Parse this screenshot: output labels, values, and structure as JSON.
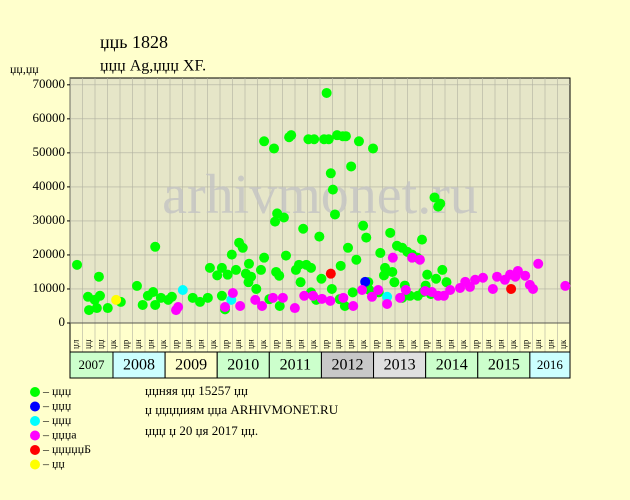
{
  "chart_data": {
    "type": "scatter",
    "title": "џџь 1828",
    "subtitle": "џџџ Ag,џџџ XF.",
    "y_label": "џџ,џџ",
    "watermark": "arhivmonet.ru",
    "xlim": [
      2007.175,
      2016.77
    ],
    "ylim": [
      0,
      72000
    ],
    "yticks": [
      0,
      10000,
      20000,
      30000,
      40000,
      50000,
      60000,
      70000
    ],
    "grid": true,
    "plot_color": "#e6e6c8",
    "column_labels": [
      "џл",
      "џџ",
      "џџ",
      "џк",
      "џр",
      "џн",
      "џн",
      "џк",
      "џр",
      "џн",
      "џн",
      "џк",
      "џр",
      "џн",
      "џн",
      "џк",
      "џр",
      "џн",
      "џн",
      "џк",
      "џр",
      "џн",
      "џн",
      "џк",
      "џр",
      "џн",
      "џн",
      "џк",
      "џр",
      "џн",
      "џн",
      "џк",
      "џр",
      "џн",
      "џн",
      "џк",
      "џр",
      "џн",
      "џн",
      "џк"
    ],
    "years": [
      2007,
      2008,
      2009,
      2010,
      2011,
      2012,
      2013,
      2014,
      2015,
      2016
    ],
    "year_colors": [
      "#ccffcc",
      "#ccffff",
      "#ffffcc",
      "#ccffcc",
      "#ccffcc",
      "#c8c8c8",
      "#e0e0e0",
      "#ccffcc",
      "#ccffcc",
      "#ccffff"
    ],
    "series": [
      {
        "name": "– џџџ",
        "color": "#00ff00",
        "x": [
          2007.31,
          2007.52,
          2007.54,
          2007.65,
          2007.73,
          2007.75,
          2007.69,
          2007.9,
          2008.15,
          2008.46,
          2008.57,
          2008.67,
          2008.77,
          2008.81,
          2008.81,
          2008.92,
          2009.06,
          2009.13,
          2009.53,
          2009.67,
          2009.86,
          2009.82,
          2010.09,
          2010.09,
          2010.2,
          2010.28,
          2010.36,
          2010.42,
          2010.49,
          2010.55,
          2010.61,
          2010.65,
          2010.9,
          2010.84,
          2010.9,
          2011.09,
          2011.15,
          2011.19,
          2011.11,
          2011.28,
          2011.13,
          2011.32,
          2011.38,
          2011.42,
          2011.51,
          2011.57,
          2011.65,
          2011.71,
          2011.75,
          2011.8,
          2011.86,
          2011.9,
          2011.96,
          2012.05,
          2012.1,
          2012.14,
          2012.18,
          2012.22,
          2012.26,
          2012.3,
          2012.37,
          2012.41,
          2012.47,
          2012.51,
          2012.57,
          2012.67,
          2012.72,
          2012.8,
          2012.86,
          2012.92,
          2012.99,
          2013.13,
          2013.22,
          2013.32,
          2013.36,
          2013.45,
          2013.55,
          2013.65,
          2013.74,
          2013.84,
          2013.93,
          2014.03,
          2014.17,
          2014.24,
          2014.28,
          2014.32,
          2013.95,
          2013.55,
          2010.0,
          2010.15,
          2010.6,
          2010.75,
          2011.0,
          2011.2,
          2011.6,
          2011.8,
          2012.0,
          2012.2,
          2012.35,
          2012.45,
          2012.6,
          2012.9,
          2013.1,
          2013.2,
          2013.4,
          2013.6,
          2013.7,
          2013.85,
          2014.0,
          2014.1,
          2014.2,
          2014.4
        ],
        "values": [
          17100,
          7700,
          3800,
          6800,
          13600,
          8000,
          4400,
          4400,
          6200,
          10900,
          5300,
          8000,
          9100,
          22400,
          5300,
          7400,
          6800,
          7700,
          7400,
          6200,
          16200,
          7400,
          16200,
          8000,
          14200,
          20100,
          15600,
          23600,
          22100,
          14500,
          17400,
          13600,
          53400,
          15600,
          19200,
          51300,
          32200,
          13900,
          29800,
          31000,
          15000,
          19800,
          54600,
          55200,
          15600,
          17100,
          27700,
          17100,
          54000,
          16200,
          54000,
          6800,
          25400,
          54000,
          67600,
          54000,
          44000,
          39200,
          31900,
          55200,
          16800,
          54900,
          54900,
          22100,
          46000,
          18600,
          53400,
          28600,
          25100,
          9700,
          51300,
          20600,
          16200,
          26500,
          15000,
          22700,
          22100,
          20900,
          20100,
          19200,
          24500,
          14200,
          36900,
          34200,
          35100,
          15600,
          9100,
          7400,
          14000,
          4000,
          12000,
          10000,
          7000,
          5000,
          12000,
          9000,
          13000,
          10000,
          7000,
          5000,
          9000,
          12000,
          9000,
          14000,
          12000,
          11000,
          8000,
          8000,
          11000,
          8500,
          13000,
          12000
        ]
      },
      {
        "name": "– џџџ",
        "color": "#0000ff",
        "x": [
          2012.84
        ],
        "values": [
          12100
        ]
      },
      {
        "name": "– џџџ",
        "color": "#00ffff",
        "x": [
          2009.34,
          2010.27,
          2013.26
        ],
        "values": [
          9700,
          6800,
          7700
        ]
      },
      {
        "name": "– џџџа",
        "color": "#ff00ff",
        "x": [
          2009.21,
          2009.25,
          2010.15,
          2010.3,
          2010.44,
          2010.73,
          2010.86,
          2011.07,
          2011.26,
          2011.49,
          2011.67,
          2011.84,
          2012.01,
          2012.17,
          2012.42,
          2012.61,
          2012.78,
          2012.97,
          2013.09,
          2013.26,
          2013.37,
          2013.51,
          2013.62,
          2013.74,
          2013.89,
          2013.99,
          2014.12,
          2014.24,
          2014.35,
          2014.47,
          2014.66,
          2014.76,
          2014.85,
          2014.95,
          2015.1,
          2015.29,
          2015.37,
          2015.52,
          2015.62,
          2015.72,
          2015.77,
          2015.91,
          2016.0,
          2016.06,
          2016.16,
          2016.68
        ],
        "values": [
          3800,
          4700,
          4700,
          8800,
          5000,
          6800,
          5000,
          7400,
          7400,
          4400,
          8000,
          8000,
          7100,
          6500,
          7400,
          5000,
          9700,
          7700,
          9700,
          5600,
          19200,
          7400,
          9700,
          19200,
          18600,
          9400,
          9100,
          8000,
          8000,
          9700,
          10300,
          12100,
          10600,
          12700,
          13300,
          10000,
          13600,
          12700,
          14200,
          13600,
          15300,
          13900,
          11200,
          10000,
          17400,
          10900
        ]
      },
      {
        "name": "– џџџџџБ",
        "color": "#ff0000",
        "x": [
          2012.18,
          2015.64
        ],
        "values": [
          14500,
          10000
        ]
      },
      {
        "name": "– џџ",
        "color": "#ffff00",
        "x": [
          2008.06
        ],
        "values": [
          6800
        ]
      }
    ],
    "notes": [
      "џџняя џџ 15257 џџ",
      "џ џџџџиям џџа ARHIVMONET.RU",
      "џџџ џ 20 џя 2017 џџ."
    ]
  }
}
